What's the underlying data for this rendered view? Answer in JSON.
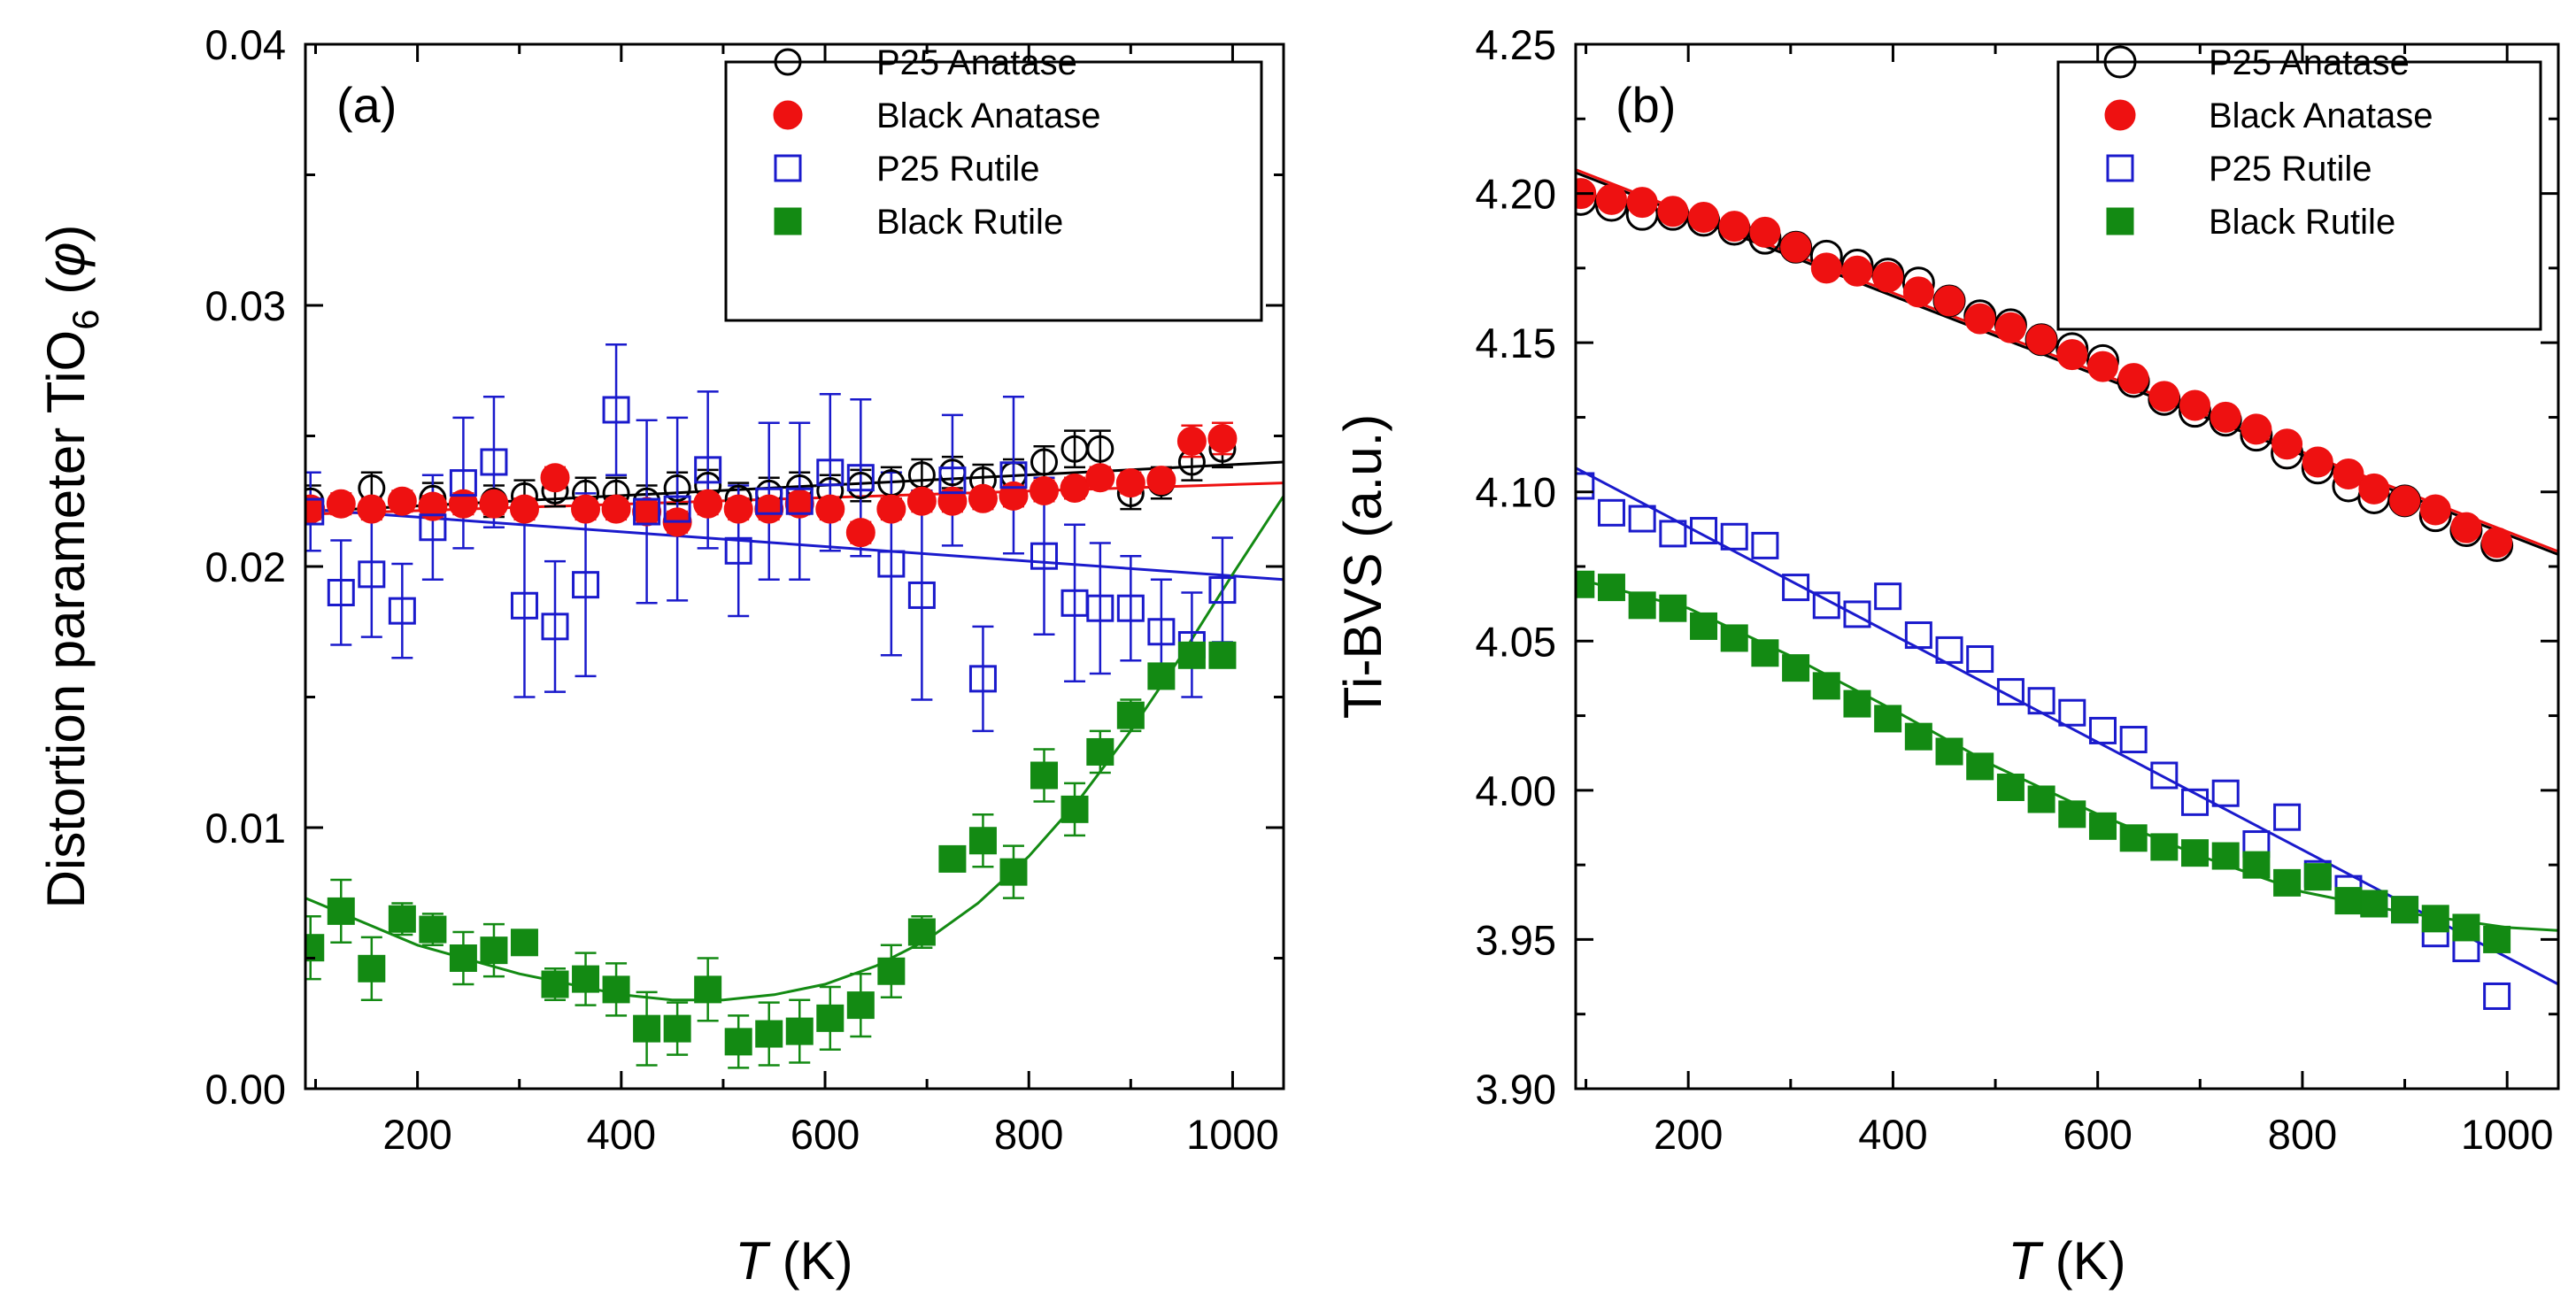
{
  "chart_data": [
    {
      "type": "scatter",
      "panel_label": "(a)",
      "ylabel_parts": [
        "Distortion parameter TiO",
        "6",
        " (",
        "φ",
        ")"
      ],
      "xlabel_italic": "T",
      "xlabel_rest": " (K)",
      "xlim": [
        90,
        1050
      ],
      "ylim": [
        0,
        0.04
      ],
      "xticks": [
        200,
        400,
        600,
        800,
        1000
      ],
      "yticks": [
        "0.00",
        "0.01",
        "0.02",
        "0.03",
        "0.04"
      ],
      "legend_position": "top-right",
      "series": [
        {
          "name": "P25 Anatase",
          "marker": "circle-open",
          "color": "#000000",
          "x": [
            95,
            155,
            215,
            275,
            305,
            335,
            365,
            395,
            425,
            455,
            485,
            515,
            545,
            575,
            605,
            635,
            665,
            695,
            725,
            755,
            785,
            815,
            845,
            870,
            900,
            930,
            960,
            990
          ],
          "y": [
            0.0225,
            0.023,
            0.0226,
            0.0225,
            0.0227,
            0.0229,
            0.0228,
            0.0228,
            0.0225,
            0.023,
            0.0231,
            0.0226,
            0.0228,
            0.023,
            0.0229,
            0.0231,
            0.0232,
            0.0235,
            0.0236,
            0.0233,
            0.0235,
            0.024,
            0.0245,
            0.0245,
            0.0228,
            0.0232,
            0.024,
            0.0245
          ],
          "err": [
            0.0006,
            0.0006,
            0.0006,
            0.0006,
            0.0006,
            0.0006,
            0.0006,
            0.0006,
            0.0006,
            0.0006,
            0.0006,
            0.0006,
            0.0006,
            0.0006,
            0.0006,
            0.0006,
            0.0006,
            0.0006,
            0.0006,
            0.0006,
            0.0006,
            0.0006,
            0.0007,
            0.0007,
            0.0006,
            0.0006,
            0.0007,
            0.0007
          ]
        },
        {
          "name": "Black Anatase",
          "marker": "circle-filled",
          "color": "#ee1111",
          "x": [
            95,
            125,
            155,
            185,
            215,
            245,
            275,
            305,
            335,
            365,
            395,
            425,
            455,
            485,
            515,
            545,
            575,
            605,
            635,
            665,
            695,
            725,
            755,
            785,
            815,
            845,
            870,
            900,
            930,
            960,
            990
          ],
          "y": [
            0.0222,
            0.0224,
            0.0222,
            0.0225,
            0.0223,
            0.0224,
            0.0224,
            0.0222,
            0.0234,
            0.0222,
            0.0222,
            0.0221,
            0.0217,
            0.0224,
            0.0222,
            0.0222,
            0.0224,
            0.0222,
            0.0213,
            0.0222,
            0.0225,
            0.0225,
            0.0226,
            0.0227,
            0.0229,
            0.023,
            0.0234,
            0.0232,
            0.0233,
            0.0248,
            0.0249
          ],
          "err": [
            0.0004,
            0.0004,
            0.0004,
            0.0004,
            0.0004,
            0.0004,
            0.0004,
            0.0004,
            0.0004,
            0.0004,
            0.0004,
            0.0004,
            0.0004,
            0.0004,
            0.0004,
            0.0004,
            0.0004,
            0.0004,
            0.0004,
            0.0004,
            0.0004,
            0.0004,
            0.0004,
            0.0004,
            0.0004,
            0.0004,
            0.0004,
            0.0004,
            0.0004,
            0.0006,
            0.0006
          ]
        },
        {
          "name": "P25 Rutile",
          "marker": "square-open",
          "color": "#1a1acc",
          "x": [
            95,
            125,
            155,
            185,
            215,
            245,
            275,
            305,
            335,
            365,
            395,
            425,
            455,
            485,
            515,
            545,
            575,
            605,
            635,
            665,
            695,
            725,
            755,
            785,
            815,
            845,
            870,
            900,
            930,
            960,
            990
          ],
          "y": [
            0.0221,
            0.019,
            0.0197,
            0.0183,
            0.0215,
            0.0232,
            0.024,
            0.0185,
            0.0177,
            0.0193,
            0.026,
            0.0221,
            0.0222,
            0.0237,
            0.0206,
            0.0225,
            0.0225,
            0.0236,
            0.0234,
            0.0201,
            0.0189,
            0.0233,
            0.0157,
            0.0235,
            0.0204,
            0.0186,
            0.0184,
            0.0184,
            0.0175,
            0.017,
            0.0191
          ],
          "err": [
            0.0015,
            0.002,
            0.0024,
            0.0018,
            0.002,
            0.0025,
            0.0025,
            0.0035,
            0.0025,
            0.0035,
            0.0025,
            0.0035,
            0.0035,
            0.003,
            0.0025,
            0.003,
            0.003,
            0.003,
            0.003,
            0.0035,
            0.004,
            0.0025,
            0.002,
            0.003,
            0.003,
            0.003,
            0.0025,
            0.002,
            0.002,
            0.002,
            0.002
          ]
        },
        {
          "name": "Black Rutile",
          "marker": "square-filled",
          "color": "#138a13",
          "x": [
            95,
            125,
            155,
            185,
            215,
            245,
            275,
            305,
            335,
            365,
            395,
            425,
            455,
            485,
            515,
            545,
            575,
            605,
            635,
            665,
            695,
            725,
            755,
            785,
            815,
            845,
            870,
            900,
            930,
            960,
            990
          ],
          "y": [
            0.0054,
            0.0068,
            0.0046,
            0.0065,
            0.0061,
            0.005,
            0.0053,
            0.0056,
            0.004,
            0.0042,
            0.0038,
            0.0023,
            0.0023,
            0.0038,
            0.0018,
            0.0021,
            0.0022,
            0.0027,
            0.0032,
            0.0045,
            0.006,
            0.0088,
            0.0095,
            0.0083,
            0.012,
            0.0107,
            0.0129,
            0.0143,
            0.0158,
            0.0166,
            0.0166
          ],
          "err": [
            0.0012,
            0.0012,
            0.0012,
            0.0006,
            0.0006,
            0.001,
            0.001,
            0.0004,
            0.0006,
            0.001,
            0.001,
            0.0014,
            0.001,
            0.0012,
            0.001,
            0.0012,
            0.0012,
            0.0012,
            0.0012,
            0.001,
            0.0006,
            0.0004,
            0.001,
            0.001,
            0.001,
            0.001,
            0.0008,
            0.0006,
            0.0004,
            0.0004,
            0.0004
          ]
        }
      ],
      "fits": [
        {
          "color": "#000000",
          "x": [
            90,
            1050
          ],
          "y": [
            0.0221,
            0.024
          ]
        },
        {
          "color": "#ee1111",
          "x": [
            90,
            1050
          ],
          "y": [
            0.022,
            0.0232
          ]
        },
        {
          "color": "#1a1acc",
          "x": [
            90,
            1050
          ],
          "y": [
            0.0222,
            0.0195
          ]
        },
        {
          "color": "#138a13",
          "x": [
            90,
            200,
            300,
            400,
            450,
            500,
            550,
            600,
            650,
            700,
            750,
            800,
            850,
            900,
            950,
            1000,
            1050
          ],
          "y": [
            0.0073,
            0.0055,
            0.0044,
            0.0036,
            0.0034,
            0.0034,
            0.0036,
            0.004,
            0.0047,
            0.0057,
            0.0071,
            0.0089,
            0.0111,
            0.0137,
            0.0166,
            0.0197,
            0.0227
          ]
        }
      ]
    },
    {
      "type": "scatter",
      "panel_label": "(b)",
      "ylabel": "Ti-BVS (a.u.)",
      "xlabel_italic": "T",
      "xlabel_rest": " (K)",
      "xlim": [
        90,
        1050
      ],
      "ylim": [
        3.9,
        4.25
      ],
      "xticks": [
        200,
        400,
        600,
        800,
        1000
      ],
      "yticks": [
        "3.90",
        "3.95",
        "4.00",
        "4.05",
        "4.10",
        "4.15",
        "4.20",
        "4.25"
      ],
      "legend_position": "top-right",
      "series": [
        {
          "name": "P25 Anatase",
          "marker": "circle-open",
          "color": "#000000",
          "x": [
            95,
            125,
            155,
            185,
            215,
            245,
            275,
            305,
            335,
            365,
            395,
            425,
            455,
            485,
            515,
            545,
            575,
            605,
            635,
            665,
            695,
            725,
            755,
            785,
            815,
            845,
            870,
            900,
            930,
            960,
            990
          ],
          "y": [
            4.198,
            4.196,
            4.193,
            4.193,
            4.191,
            4.188,
            4.185,
            4.182,
            4.179,
            4.176,
            4.173,
            4.17,
            4.164,
            4.159,
            4.156,
            4.151,
            4.148,
            4.144,
            4.137,
            4.131,
            4.127,
            4.124,
            4.119,
            4.113,
            4.108,
            4.102,
            4.098,
            4.097,
            4.092,
            4.087,
            4.082
          ]
        },
        {
          "name": "Black Anatase",
          "marker": "circle-filled",
          "color": "#ee1111",
          "x": [
            95,
            125,
            155,
            185,
            215,
            245,
            275,
            305,
            335,
            365,
            395,
            425,
            455,
            485,
            515,
            545,
            575,
            605,
            635,
            665,
            695,
            725,
            755,
            785,
            815,
            845,
            870,
            900,
            930,
            960,
            990
          ],
          "y": [
            4.2,
            4.198,
            4.197,
            4.194,
            4.192,
            4.189,
            4.187,
            4.182,
            4.175,
            4.174,
            4.172,
            4.167,
            4.164,
            4.158,
            4.155,
            4.151,
            4.146,
            4.142,
            4.138,
            4.132,
            4.129,
            4.125,
            4.121,
            4.116,
            4.11,
            4.106,
            4.101,
            4.097,
            4.094,
            4.088,
            4.083
          ]
        },
        {
          "name": "P25 Rutile",
          "marker": "square-open",
          "color": "#1a1acc",
          "x": [
            95,
            125,
            155,
            185,
            215,
            245,
            275,
            305,
            335,
            365,
            395,
            425,
            455,
            485,
            515,
            545,
            575,
            605,
            635,
            665,
            695,
            725,
            755,
            785,
            815,
            845,
            870,
            900,
            930,
            960,
            990
          ],
          "y": [
            4.102,
            4.093,
            4.091,
            4.086,
            4.087,
            4.085,
            4.082,
            4.068,
            4.062,
            4.059,
            4.065,
            4.052,
            4.047,
            4.044,
            4.033,
            4.03,
            4.026,
            4.02,
            4.017,
            4.005,
            3.996,
            3.999,
            3.982,
            3.991,
            3.972,
            3.967,
            3.962,
            3.96,
            3.952,
            3.947,
            3.931
          ]
        },
        {
          "name": "Black Rutile",
          "marker": "square-filled",
          "color": "#138a13",
          "x": [
            95,
            125,
            155,
            185,
            215,
            245,
            275,
            305,
            335,
            365,
            395,
            425,
            455,
            485,
            515,
            545,
            575,
            605,
            635,
            665,
            695,
            725,
            755,
            785,
            815,
            845,
            870,
            900,
            930,
            960,
            990
          ],
          "y": [
            4.069,
            4.068,
            4.062,
            4.061,
            4.055,
            4.051,
            4.046,
            4.041,
            4.035,
            4.029,
            4.024,
            4.018,
            4.013,
            4.008,
            4.001,
            3.997,
            3.992,
            3.988,
            3.984,
            3.981,
            3.979,
            3.978,
            3.975,
            3.969,
            3.971,
            3.963,
            3.962,
            3.96,
            3.957,
            3.954,
            3.95
          ]
        }
      ],
      "fits": [
        {
          "color": "#000000",
          "x": [
            90,
            1050
          ],
          "y": [
            4.207,
            4.079
          ]
        },
        {
          "color": "#ee1111",
          "x": [
            90,
            1050
          ],
          "y": [
            4.208,
            4.08
          ]
        },
        {
          "color": "#1a1acc",
          "x": [
            90,
            1050
          ],
          "y": [
            4.108,
            3.935
          ]
        },
        {
          "color": "#138a13",
          "x": [
            90,
            200,
            300,
            400,
            500,
            600,
            700,
            800,
            900,
            1000,
            1050
          ],
          "y": [
            4.071,
            4.061,
            4.045,
            4.027,
            4.008,
            3.992,
            3.978,
            3.966,
            3.959,
            3.954,
            3.953
          ]
        }
      ]
    }
  ]
}
